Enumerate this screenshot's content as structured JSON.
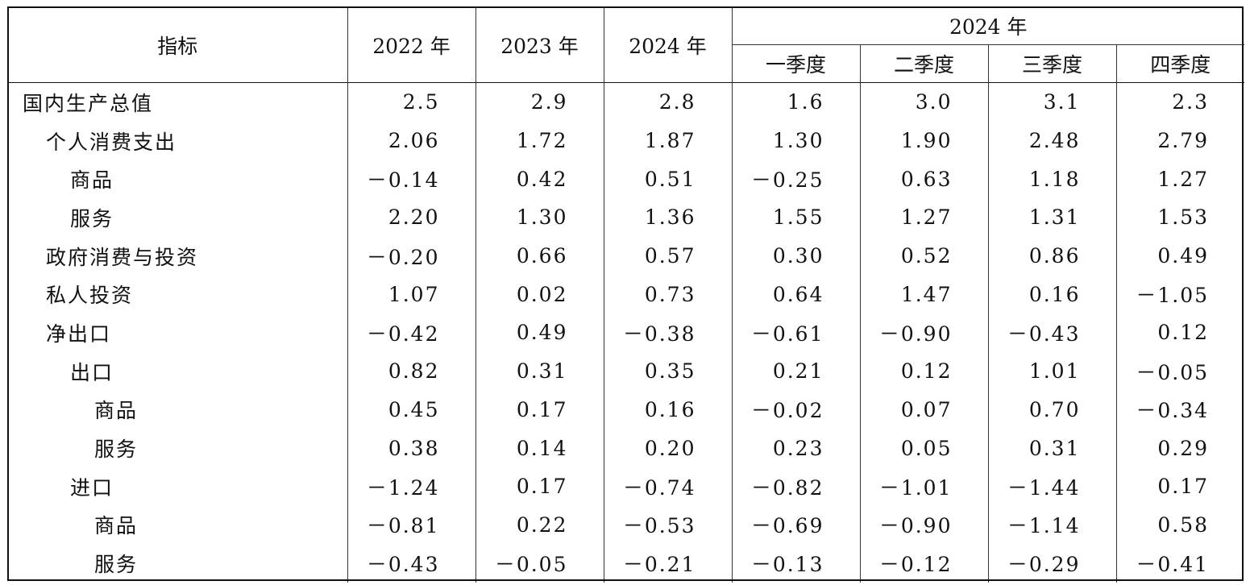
{
  "headers": {
    "indicator": "指标",
    "y2022": "2022 年",
    "y2023": "2023 年",
    "y2024": "2024 年",
    "group2024": "2024 年",
    "q1": "一季度",
    "q2": "二季度",
    "q3": "三季度",
    "q4": "四季度"
  },
  "rows": [
    {
      "label": "国内生产总值",
      "indent": 0,
      "values": [
        "2.5",
        "2.9",
        "2.8",
        "1.6",
        "3.0",
        "3.1",
        "2.3"
      ]
    },
    {
      "label": "个人消费支出",
      "indent": 1,
      "values": [
        "2.06",
        "1.72",
        "1.87",
        "1.30",
        "1.90",
        "2.48",
        "2.79"
      ]
    },
    {
      "label": "商品",
      "indent": 2,
      "values": [
        "－0.14",
        "0.42",
        "0.51",
        "－0.25",
        "0.63",
        "1.18",
        "1.27"
      ]
    },
    {
      "label": "服务",
      "indent": 2,
      "values": [
        "2.20",
        "1.30",
        "1.36",
        "1.55",
        "1.27",
        "1.31",
        "1.53"
      ]
    },
    {
      "label": "政府消费与投资",
      "indent": 1,
      "values": [
        "－0.20",
        "0.66",
        "0.57",
        "0.30",
        "0.52",
        "0.86",
        "0.49"
      ]
    },
    {
      "label": "私人投资",
      "indent": 1,
      "values": [
        "1.07",
        "0.02",
        "0.73",
        "0.64",
        "1.47",
        "0.16",
        "－1.05"
      ]
    },
    {
      "label": "净出口",
      "indent": 1,
      "values": [
        "－0.42",
        "0.49",
        "－0.38",
        "－0.61",
        "－0.90",
        "－0.43",
        "0.12"
      ]
    },
    {
      "label": "出口",
      "indent": 2,
      "values": [
        "0.82",
        "0.31",
        "0.35",
        "0.21",
        "0.12",
        "1.01",
        "－0.05"
      ]
    },
    {
      "label": "商品",
      "indent": 3,
      "values": [
        "0.45",
        "0.17",
        "0.16",
        "－0.02",
        "0.07",
        "0.70",
        "－0.34"
      ]
    },
    {
      "label": "服务",
      "indent": 3,
      "values": [
        "0.38",
        "0.14",
        "0.20",
        "0.23",
        "0.05",
        "0.31",
        "0.29"
      ]
    },
    {
      "label": "进口",
      "indent": 2,
      "values": [
        "－1.24",
        "0.17",
        "－0.74",
        "－0.82",
        "－1.01",
        "－1.44",
        "0.17"
      ]
    },
    {
      "label": "商品",
      "indent": 3,
      "values": [
        "－0.81",
        "0.22",
        "－0.53",
        "－0.69",
        "－0.90",
        "－1.14",
        "0.58"
      ]
    },
    {
      "label": "服务",
      "indent": 3,
      "values": [
        "－0.43",
        "－0.05",
        "－0.21",
        "－0.13",
        "－0.12",
        "－0.29",
        "－0.41"
      ]
    }
  ]
}
